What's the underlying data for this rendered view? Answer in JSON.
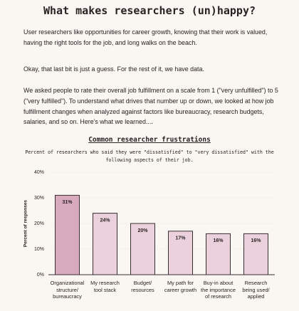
{
  "title": "What makes researchers (un)happy?",
  "paragraphs": [
    "User researchers like opportunities for career growth, knowing that their work is valued, having the right tools for the job, and long walks on the beach.",
    "Okay, that last bit is just a guess. For the rest of it, we have data.",
    "We asked people to rate their overall job fulfillment on a scale from 1 (\"very unfulfilled\") to 5  (\"very fulfilled\"). To understand what drives that number up or down, we looked at how job fulfillment changes when analyzed against factors like bureaucracy, research budgets, salaries, and so on. Here's what we learned...."
  ],
  "chart_data": {
    "type": "bar",
    "title": "Common researcher frustrations",
    "subtitle": "Percent of researchers who said they were \"dissatisfied\" to \"very dissatisfied\" with the following aspects of their job.",
    "y_label": "Percent of responses",
    "categories": [
      "Organizational\nstructure/\nbureaucracy",
      "My research\ntool stack",
      "Budget/\nresources",
      "My path for\ncareer growth",
      "Buy-in about\nthe importance\nof research",
      "Research\nbeing used/\napplied"
    ],
    "values": [
      31,
      24,
      20,
      17,
      16,
      16
    ],
    "value_labels": [
      "31%",
      "24%",
      "20%",
      "17%",
      "16%",
      "16%"
    ],
    "colors": [
      "#d8aabd",
      "#ebd1db",
      "#ebd1db",
      "#ebd1db",
      "#ebd1db",
      "#ebd1db"
    ],
    "ylim": [
      0,
      40
    ],
    "yticks": [
      {
        "value": 0,
        "label": "0%"
      },
      {
        "value": 10,
        "label": "10%"
      },
      {
        "value": 20,
        "label": "20%"
      },
      {
        "value": 30,
        "label": "30%"
      },
      {
        "value": 40,
        "label": "40%"
      }
    ],
    "grid": true
  }
}
